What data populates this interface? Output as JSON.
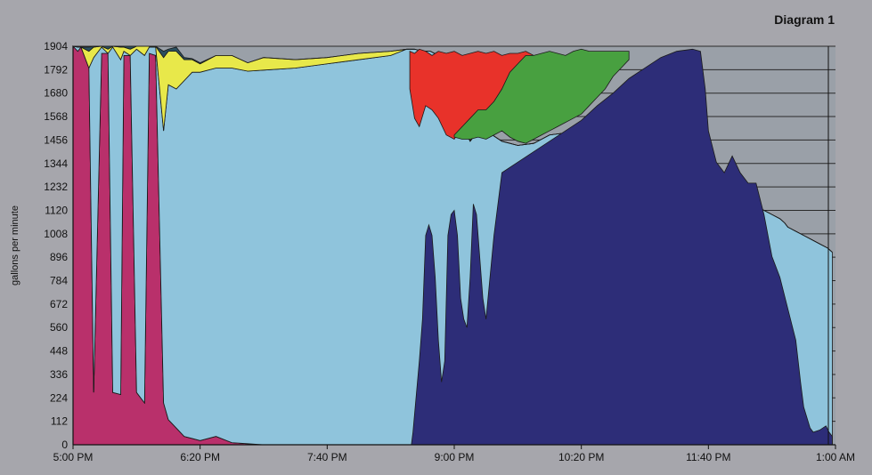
{
  "chart_data": {
    "type": "area",
    "title": "Diagram 1",
    "ylabel": "gallons per minute",
    "xlabel": "",
    "ylim": [
      0,
      1904
    ],
    "xlim_minutes": [
      0,
      480
    ],
    "y_ticks": [
      0,
      112,
      224,
      336,
      448,
      560,
      672,
      784,
      896,
      1008,
      1120,
      1232,
      1344,
      1456,
      1568,
      1680,
      1792,
      1904
    ],
    "x_ticks": [
      {
        "label": "5:00 PM",
        "t": 0
      },
      {
        "label": "6:20 PM",
        "t": 80
      },
      {
        "label": "7:40 PM",
        "t": 160
      },
      {
        "label": "9:00 PM",
        "t": 240
      },
      {
        "label": "10:20 PM",
        "t": 320
      },
      {
        "label": "11:40 PM",
        "t": 400
      },
      {
        "label": "1:00 AM",
        "t": 480
      }
    ],
    "x_minutes": [
      0,
      3,
      5,
      10,
      13,
      18,
      22,
      25,
      30,
      32,
      36,
      40,
      45,
      48,
      52,
      57,
      60,
      65,
      70,
      75,
      80,
      90,
      100,
      110,
      120,
      140,
      160,
      180,
      200,
      210,
      215,
      220,
      225,
      230,
      235,
      240,
      250,
      255,
      260,
      270,
      280,
      290,
      300,
      320,
      340,
      360,
      380,
      395,
      400,
      410,
      420,
      428,
      435,
      440,
      445,
      448,
      450,
      455,
      460,
      465,
      470,
      475,
      478
    ],
    "series": [
      {
        "color": "#b9306b",
        "values": [
          1904,
          1880,
          1900,
          1800,
          250,
          1870,
          1870,
          250,
          240,
          1860,
          1860,
          250,
          200,
          1870,
          1860,
          200,
          120,
          80,
          40,
          30,
          20,
          40,
          10,
          5,
          0,
          0,
          0,
          0,
          0,
          0,
          0,
          0,
          0,
          0,
          0,
          0,
          0,
          0,
          0,
          0,
          0,
          0,
          0,
          0,
          0,
          0,
          0,
          0,
          0,
          0,
          0,
          0,
          0,
          0,
          0,
          0,
          0,
          0,
          0,
          0,
          0,
          0,
          0
        ]
      },
      {
        "color": "#2d2d7a",
        "values": [
          0,
          0,
          0,
          0,
          0,
          0,
          0,
          0,
          0,
          0,
          0,
          0,
          0,
          0,
          0,
          0,
          0,
          0,
          0,
          0,
          0,
          0,
          0,
          0,
          0,
          0,
          0,
          0,
          0,
          0,
          0,
          0,
          0,
          0,
          0,
          0,
          0,
          0,
          0,
          0,
          0,
          0,
          0,
          0,
          0,
          0,
          0,
          0,
          0,
          0,
          0,
          0,
          0,
          0,
          0,
          0,
          0,
          0,
          0,
          0,
          0,
          0,
          0
        ]
      },
      {
        "color": "#8fc4dc",
        "values": [
          0,
          20,
          0,
          0,
          1600,
          30,
          0,
          1650,
          1600,
          20,
          0,
          1640,
          1660,
          30,
          40,
          1300,
          1600,
          1620,
          1700,
          1750,
          1760,
          1760,
          1790,
          1780,
          1790,
          1800,
          1820,
          1840,
          1860,
          1890,
          1890,
          1880,
          1880,
          1860,
          1800,
          1600,
          1450,
          1500,
          1500,
          1450,
          1430,
          1440,
          1480,
          1500,
          1450,
          1400,
          1350,
          1300,
          1280,
          1250,
          1200,
          1150,
          1120,
          1100,
          1080,
          1060,
          1040,
          1020,
          1000,
          980,
          960,
          940,
          920
        ]
      },
      {
        "color": "#e8e84a",
        "values": [
          0,
          0,
          0,
          80,
          50,
          20,
          20,
          20,
          60,
          20,
          30,
          60,
          60,
          20,
          30,
          350,
          160,
          180,
          100,
          60,
          40,
          60,
          60,
          40,
          60,
          40,
          30,
          30,
          20,
          0,
          0,
          0,
          0,
          0,
          0,
          0,
          0,
          0,
          0,
          0,
          0,
          0,
          0,
          0,
          0,
          0,
          0,
          0,
          0,
          0,
          0,
          0,
          0,
          0,
          0,
          0,
          0,
          0,
          0,
          0,
          0,
          0,
          0
        ]
      },
      {
        "color": "#2b4f5f",
        "values": [
          0,
          0,
          0,
          20,
          30,
          30,
          30,
          30,
          50,
          20,
          30,
          40,
          40,
          20,
          10,
          30,
          10,
          20,
          10,
          5,
          5,
          0,
          0,
          0,
          0,
          0,
          0,
          0,
          0,
          0,
          0,
          0,
          0,
          0,
          0,
          0,
          0,
          0,
          0,
          0,
          0,
          0,
          0,
          0,
          0,
          0,
          0,
          0,
          0,
          0,
          0,
          0,
          0,
          0,
          0,
          0,
          0,
          0,
          0,
          0,
          0,
          0,
          0
        ]
      }
    ]
  },
  "overlay": {
    "note": "Stacked bands drawn on top (in data units)"
  },
  "bands": {
    "dark_blue": {
      "color": "#2d2d78",
      "t": [
        213,
        214,
        218,
        220,
        222,
        224,
        226,
        228,
        230,
        232,
        234,
        236,
        238,
        240,
        242,
        244,
        246,
        248,
        250,
        252,
        254,
        256,
        258,
        260,
        265,
        270,
        280,
        290,
        300,
        310,
        320,
        330,
        340,
        350,
        360,
        370,
        380,
        390,
        395,
        398,
        400,
        405,
        410,
        415,
        420,
        425,
        430,
        435,
        440,
        445,
        450,
        455,
        458,
        460,
        464,
        466,
        470,
        474,
        476,
        478
      ],
      "v": [
        0,
        60,
        400,
        600,
        1000,
        1050,
        1000,
        800,
        500,
        300,
        400,
        1000,
        1100,
        1120,
        1000,
        700,
        600,
        560,
        800,
        1150,
        1100,
        900,
        700,
        600,
        1000,
        1300,
        1350,
        1400,
        1450,
        1500,
        1550,
        1620,
        1680,
        1750,
        1800,
        1850,
        1880,
        1890,
        1880,
        1700,
        1500,
        1350,
        1300,
        1380,
        1300,
        1250,
        1250,
        1100,
        900,
        800,
        650,
        500,
        300,
        180,
        80,
        60,
        70,
        90,
        60,
        40
      ]
    },
    "red": {
      "color": "#e8322a",
      "t": [
        212,
        215,
        218,
        222,
        226,
        230,
        235,
        240,
        245,
        250,
        255,
        260,
        265,
        270,
        275,
        280,
        285,
        290
      ],
      "v_top": [
        1880,
        1870,
        1890,
        1880,
        1860,
        1880,
        1870,
        1880,
        1860,
        1870,
        1880,
        1870,
        1880,
        1860,
        1870,
        1870,
        1880,
        1860
      ],
      "v_bot": [
        1700,
        1560,
        1520,
        1620,
        1600,
        1560,
        1480,
        1460,
        1520,
        1520,
        1560,
        1520,
        1560,
        1580,
        1560,
        1580,
        1600,
        1560
      ]
    },
    "green": {
      "color": "#48a040",
      "t": [
        240,
        245,
        250,
        255,
        260,
        265,
        270,
        275,
        280,
        285,
        290,
        295,
        300,
        305,
        310,
        315,
        320,
        325,
        330,
        335,
        340,
        345,
        350
      ],
      "v_top": [
        1480,
        1520,
        1560,
        1600,
        1600,
        1640,
        1700,
        1780,
        1820,
        1860,
        1860,
        1870,
        1880,
        1870,
        1860,
        1880,
        1890,
        1880,
        1880,
        1880,
        1880,
        1880,
        1880
      ],
      "v_bot": [
        1470,
        1460,
        1460,
        1470,
        1460,
        1480,
        1500,
        1470,
        1450,
        1440,
        1460,
        1480,
        1500,
        1520,
        1540,
        1560,
        1580,
        1620,
        1660,
        1700,
        1760,
        1800,
        1840
      ]
    }
  }
}
